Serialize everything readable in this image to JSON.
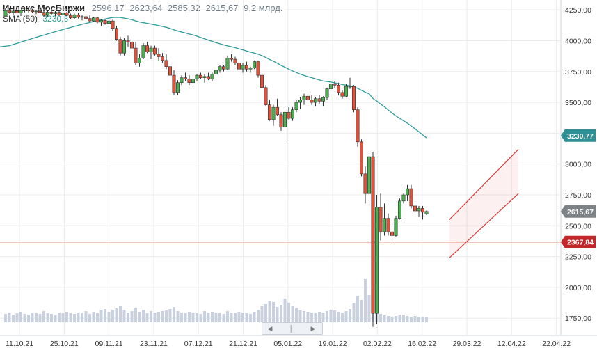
{
  "header": {
    "name": "Индекс МосБиржи",
    "open": "2596,17",
    "high": "2623,64",
    "low": "2585,32",
    "close": "2615,67",
    "volume": "9,2 млрд."
  },
  "indicator": {
    "label": "SMA (50)",
    "value": "3230,8"
  },
  "colors": {
    "up": "#4caf50",
    "down": "#e0543e",
    "sma": "#2e9a9a",
    "channel": "#d93a3a",
    "level": "#c0282a",
    "volume": "#c9d1e0",
    "grid": "#ebebeb",
    "tag_sma": "#2e8f94",
    "tag_price": "#7d8287",
    "tag_level": "#c0282a"
  },
  "scrollbar_icons": [
    "chevron-left-icon",
    "grip-icon",
    "chevron-right-icon"
  ],
  "chart_data": {
    "type": "candlestick",
    "y_axis": {
      "ticks": [
        "4250,00",
        "4000,00",
        "3750,00",
        "3500,00",
        "3250,00",
        "3000,00",
        "2750,00",
        "2500,00",
        "2250,00",
        "2000,00",
        "1750,00"
      ],
      "tick_values": [
        4250,
        4000,
        3750,
        3500,
        3250,
        3000,
        2750,
        2500,
        2250,
        2000,
        1750
      ],
      "range": [
        1610,
        4330
      ]
    },
    "x_axis": {
      "ticks": [
        "11.10.21",
        "25.10.21",
        "09.11.21",
        "23.11.21",
        "07.12.21",
        "21.12.21",
        "05.01.22",
        "19.01.22",
        "02.02.22",
        "16.02.22",
        "29.03.22",
        "12.04.22",
        "22.04.22"
      ]
    },
    "price_tags": [
      {
        "label": "3230,77",
        "value": 3230.77,
        "kind": "sma"
      },
      {
        "label": "2615,67",
        "value": 2615.67,
        "kind": "price"
      },
      {
        "label": "2367,84",
        "value": 2367.84,
        "kind": "level"
      }
    ],
    "horizontal_level": 2367.84,
    "channel": {
      "lower": {
        "from": {
          "i": 116,
          "v": 2240
        },
        "to": {
          "i": 134,
          "v": 2760
        }
      },
      "upper": {
        "from": {
          "i": 116,
          "v": 2550
        },
        "to": {
          "i": 134,
          "v": 3120
        }
      }
    },
    "candles": [
      [
        4200,
        4250,
        4190,
        4245
      ],
      [
        4245,
        4265,
        4220,
        4230
      ],
      [
        4230,
        4260,
        4205,
        4240
      ],
      [
        4240,
        4255,
        4215,
        4225
      ],
      [
        4225,
        4250,
        4200,
        4245
      ],
      [
        4245,
        4262,
        4230,
        4250
      ],
      [
        4250,
        4262,
        4230,
        4245
      ],
      [
        4245,
        4258,
        4225,
        4235
      ],
      [
        4235,
        4250,
        4215,
        4240
      ],
      [
        4240,
        4250,
        4220,
        4230
      ],
      [
        4230,
        4245,
        4195,
        4205
      ],
      [
        4205,
        4240,
        4195,
        4232
      ],
      [
        4232,
        4245,
        4210,
        4220
      ],
      [
        4220,
        4240,
        4200,
        4230
      ],
      [
        4230,
        4240,
        4200,
        4210
      ],
      [
        4210,
        4235,
        4195,
        4225
      ],
      [
        4225,
        4235,
        4200,
        4205
      ],
      [
        4205,
        4220,
        4175,
        4185
      ],
      [
        4185,
        4220,
        4175,
        4210
      ],
      [
        4210,
        4225,
        4180,
        4190
      ],
      [
        4190,
        4210,
        4165,
        4195
      ],
      [
        4195,
        4215,
        4175,
        4180
      ],
      [
        4180,
        4205,
        4150,
        4160
      ],
      [
        4160,
        4195,
        4150,
        4185
      ],
      [
        4185,
        4195,
        4140,
        4150
      ],
      [
        4150,
        4175,
        4120,
        4165
      ],
      [
        4165,
        4175,
        4130,
        4140
      ],
      [
        4140,
        4165,
        4110,
        4160
      ],
      [
        4160,
        4170,
        4080,
        4100
      ],
      [
        4100,
        4120,
        4000,
        4010
      ],
      [
        4010,
        4030,
        3880,
        3900
      ],
      [
        3900,
        4020,
        3880,
        4000
      ],
      [
        4000,
        4040,
        3950,
        3990
      ],
      [
        3990,
        4010,
        3900,
        3940
      ],
      [
        3940,
        3990,
        3800,
        3820
      ],
      [
        3820,
        3890,
        3790,
        3860
      ],
      [
        3860,
        3980,
        3850,
        3960
      ],
      [
        3960,
        3990,
        3900,
        3910
      ],
      [
        3910,
        3960,
        3850,
        3940
      ],
      [
        3940,
        3960,
        3880,
        3890
      ],
      [
        3890,
        3940,
        3840,
        3870
      ],
      [
        3870,
        3900,
        3820,
        3840
      ],
      [
        3840,
        3890,
        3770,
        3790
      ],
      [
        3790,
        3820,
        3700,
        3720
      ],
      [
        3720,
        3760,
        3560,
        3580
      ],
      [
        3580,
        3680,
        3560,
        3660
      ],
      [
        3660,
        3720,
        3640,
        3700
      ],
      [
        3700,
        3740,
        3670,
        3690
      ],
      [
        3690,
        3720,
        3640,
        3660
      ],
      [
        3660,
        3700,
        3630,
        3690
      ],
      [
        3690,
        3730,
        3670,
        3720
      ],
      [
        3720,
        3740,
        3690,
        3700
      ],
      [
        3700,
        3730,
        3660,
        3710
      ],
      [
        3710,
        3740,
        3680,
        3690
      ],
      [
        3690,
        3740,
        3670,
        3730
      ],
      [
        3730,
        3780,
        3720,
        3760
      ],
      [
        3760,
        3800,
        3740,
        3790
      ],
      [
        3790,
        3800,
        3750,
        3770
      ],
      [
        3770,
        3880,
        3760,
        3860
      ],
      [
        3860,
        3890,
        3830,
        3850
      ],
      [
        3850,
        3870,
        3800,
        3820
      ],
      [
        3820,
        3830,
        3760,
        3770
      ],
      [
        3770,
        3820,
        3740,
        3800
      ],
      [
        3800,
        3830,
        3750,
        3770
      ],
      [
        3770,
        3790,
        3740,
        3780
      ],
      [
        3780,
        3840,
        3770,
        3830
      ],
      [
        3830,
        3840,
        3700,
        3720
      ],
      [
        3720,
        3740,
        3610,
        3620
      ],
      [
        3620,
        3640,
        3470,
        3480
      ],
      [
        3480,
        3520,
        3350,
        3360
      ],
      [
        3360,
        3480,
        3310,
        3460
      ],
      [
        3460,
        3530,
        3390,
        3400
      ],
      [
        3400,
        3420,
        3270,
        3300
      ],
      [
        3300,
        3460,
        3160,
        3420
      ],
      [
        3420,
        3460,
        3360,
        3370
      ],
      [
        3370,
        3460,
        3350,
        3440
      ],
      [
        3440,
        3520,
        3420,
        3500
      ],
      [
        3500,
        3540,
        3450,
        3520
      ],
      [
        3520,
        3570,
        3480,
        3550
      ],
      [
        3550,
        3570,
        3500,
        3520
      ],
      [
        3520,
        3560,
        3480,
        3500
      ],
      [
        3500,
        3540,
        3470,
        3530
      ],
      [
        3530,
        3560,
        3490,
        3510
      ],
      [
        3510,
        3550,
        3470,
        3540
      ],
      [
        3540,
        3620,
        3520,
        3610
      ],
      [
        3610,
        3660,
        3590,
        3650
      ],
      [
        3650,
        3670,
        3620,
        3640
      ],
      [
        3640,
        3660,
        3560,
        3580
      ],
      [
        3580,
        3600,
        3530,
        3550
      ],
      [
        3550,
        3650,
        3540,
        3630
      ],
      [
        3630,
        3700,
        3610,
        3630
      ],
      [
        3630,
        3640,
        3420,
        3440
      ],
      [
        3440,
        3460,
        3140,
        3180
      ],
      [
        3180,
        3200,
        2900,
        2920
      ],
      [
        2920,
        2980,
        2680,
        2760
      ],
      [
        2760,
        3100,
        2700,
        3060
      ],
      [
        3060,
        3100,
        1680,
        1790
      ],
      [
        1790,
        2750,
        1700,
        2650
      ],
      [
        2650,
        2760,
        2380,
        2450
      ],
      [
        2450,
        2680,
        2420,
        2560
      ],
      [
        2560,
        2600,
        2420,
        2450
      ],
      [
        2450,
        2500,
        2380,
        2420
      ],
      [
        2420,
        2580,
        2410,
        2560
      ],
      [
        2560,
        2720,
        2550,
        2700
      ],
      [
        2700,
        2760,
        2680,
        2750
      ],
      [
        2750,
        2830,
        2700,
        2800
      ],
      [
        2800,
        2830,
        2640,
        2660
      ],
      [
        2660,
        2690,
        2600,
        2620
      ],
      [
        2620,
        2660,
        2570,
        2640
      ],
      [
        2640,
        2660,
        2550,
        2610
      ],
      [
        2596.17,
        2623.64,
        2585.32,
        2615.67
      ]
    ],
    "volumes": [
      1.2,
      1.4,
      1.1,
      1.3,
      1.5,
      1.2,
      1.1,
      1.4,
      1.3,
      1.2,
      1.6,
      1.3,
      1.2,
      1.1,
      1.4,
      1.3,
      1.5,
      1.3,
      1.2,
      1.4,
      1.3,
      1.6,
      1.2,
      1.5,
      1.3,
      1.8,
      1.9,
      1.5,
      1.7,
      2.0,
      2.3,
      1.8,
      1.4,
      1.6,
      2.1,
      1.5,
      1.8,
      1.3,
      1.6,
      1.4,
      1.5,
      1.6,
      1.7,
      1.9,
      2.2,
      1.6,
      1.4,
      1.3,
      1.5,
      1.4,
      1.3,
      1.2,
      1.6,
      1.4,
      1.5,
      1.4,
      1.3,
      1.2,
      1.6,
      1.4,
      1.3,
      1.5,
      1.4,
      1.3,
      1.2,
      1.5,
      1.8,
      2.3,
      2.6,
      3.1,
      2.9,
      2.2,
      2.5,
      3.4,
      2.8,
      2.3,
      2.1,
      1.8,
      1.6,
      1.5,
      1.4,
      1.3,
      1.5,
      1.4,
      1.6,
      1.8,
      1.7,
      1.5,
      1.4,
      1.6,
      1.9,
      2.8,
      3.8,
      3.2,
      6.2,
      3.9,
      5.0,
      2.2,
      1.2,
      1.0,
      0.9,
      0.8,
      0.9,
      1.0,
      1.1,
      0.9,
      0.8,
      0.9,
      0.7,
      0.8,
      0.7
    ]
  }
}
